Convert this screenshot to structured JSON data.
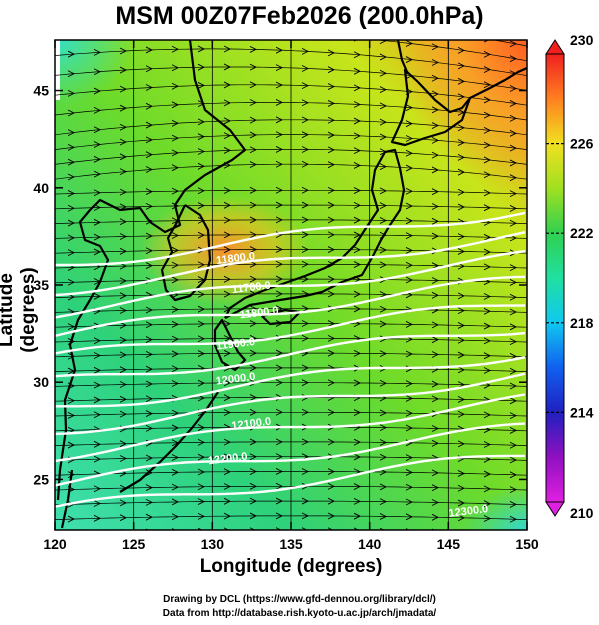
{
  "title": "MSM 00Z07Feb2026 (200.0hPa)",
  "xlabel": "Longitude (degrees)",
  "ylabel": "Latitude  (degrees)",
  "credits": [
    "Drawing by DCL (https://www.gfd-dennou.org/library/dcl/)",
    "Data from http://database.rish.kyoto-u.ac.jp/arch/jmadata/"
  ],
  "chart_data": {
    "type": "map",
    "xlim": [
      120,
      150
    ],
    "ylim": [
      22.4,
      47.6
    ],
    "xticks": [
      "120",
      "125",
      "130",
      "135",
      "140",
      "145",
      "150"
    ],
    "yticks": [
      "25",
      "30",
      "35",
      "40",
      "45"
    ],
    "colorbar": {
      "min": 210,
      "max": 230,
      "ticks": [
        "210",
        "214",
        "218",
        "222",
        "226",
        "230"
      ]
    },
    "contour_labels": [
      {
        "text": "11800.0",
        "lon": 131.5,
        "lat": 36.2
      },
      {
        "text": "11700.0",
        "lon": 132.5,
        "lat": 34.7
      },
      {
        "text": "11800.0",
        "lon": 133.0,
        "lat": 33.4
      },
      {
        "text": "11900.0",
        "lon": 131.5,
        "lat": 31.8
      },
      {
        "text": "12000.0",
        "lon": 131.5,
        "lat": 30.0
      },
      {
        "text": "12100.0",
        "lon": 132.5,
        "lat": 27.7
      },
      {
        "text": "12200.0",
        "lon": 131.0,
        "lat": 25.9
      },
      {
        "text": "12300.0",
        "lon": 146.3,
        "lat": 23.2
      }
    ]
  }
}
